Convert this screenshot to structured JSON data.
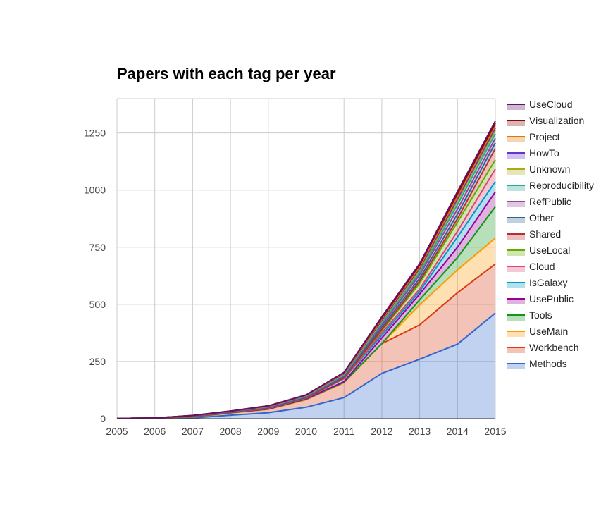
{
  "chart_data": {
    "type": "area",
    "stacked": true,
    "title": "Papers with each tag per year",
    "xlabel": "",
    "ylabel": "",
    "x": [
      2005,
      2006,
      2007,
      2008,
      2009,
      2010,
      2011,
      2012,
      2013,
      2014,
      2015
    ],
    "x_tick_labels": [
      "2005",
      "2006",
      "2007",
      "2008",
      "2009",
      "2010",
      "2011",
      "2012",
      "2013",
      "2014",
      "2015"
    ],
    "ylim": [
      0,
      1400
    ],
    "y_ticks": [
      0,
      250,
      500,
      750,
      1000,
      1250
    ],
    "y_tick_labels": [
      "0",
      "250",
      "500",
      "750",
      "1000",
      "1250"
    ],
    "grid": true,
    "legend_position": "right",
    "legend_order": [
      "UseCloud",
      "Visualization",
      "Project",
      "HowTo",
      "Unknown",
      "Reproducibility",
      "RefPublic",
      "Other",
      "Shared",
      "UseLocal",
      "Cloud",
      "IsGalaxy",
      "UsePublic",
      "Tools",
      "UseMain",
      "Workbench",
      "Methods"
    ],
    "series": [
      {
        "name": "Methods",
        "color": "#3366cc",
        "values": [
          0,
          1,
          3,
          15,
          26,
          50,
          92,
          198,
          260,
          326,
          462
        ]
      },
      {
        "name": "Workbench",
        "color": "#dc3912",
        "values": [
          1,
          2,
          4,
          10,
          15,
          33,
          66,
          130,
          150,
          225,
          215
        ]
      },
      {
        "name": "UseMain",
        "color": "#ff9900",
        "values": [
          0,
          0,
          0,
          0,
          0,
          0,
          0,
          0,
          88,
          100,
          113
        ]
      },
      {
        "name": "Tools",
        "color": "#109618",
        "values": [
          0,
          0,
          1,
          1,
          1,
          2,
          1,
          0,
          22,
          54,
          137
        ]
      },
      {
        "name": "UsePublic",
        "color": "#990099",
        "values": [
          0,
          0,
          1,
          1,
          1,
          2,
          3,
          25,
          25,
          45,
          65
        ]
      },
      {
        "name": "IsGalaxy",
        "color": "#0099c6",
        "values": [
          0,
          0,
          1,
          1,
          2,
          3,
          13,
          12,
          12,
          45,
          45
        ]
      },
      {
        "name": "Cloud",
        "color": "#dd4477",
        "values": [
          0,
          0,
          0,
          0,
          0,
          0,
          0,
          10,
          10,
          25,
          55
        ]
      },
      {
        "name": "UseLocal",
        "color": "#66aa00",
        "values": [
          0,
          0,
          1,
          1,
          2,
          2,
          3,
          10,
          25,
          40,
          40
        ]
      },
      {
        "name": "Shared",
        "color": "#b82e2e",
        "values": [
          0,
          0,
          0,
          0,
          0,
          0,
          0,
          5,
          10,
          15,
          50
        ]
      },
      {
        "name": "Other",
        "color": "#316395",
        "values": [
          0,
          0,
          1,
          1,
          2,
          2,
          5,
          10,
          12,
          20,
          25
        ]
      },
      {
        "name": "RefPublic",
        "color": "#994499",
        "values": [
          0,
          0,
          1,
          1,
          2,
          3,
          5,
          10,
          15,
          22,
          20
        ]
      },
      {
        "name": "Reproducibility",
        "color": "#22aa99",
        "values": [
          0,
          0,
          0,
          0,
          1,
          2,
          3,
          8,
          10,
          20,
          20
        ]
      },
      {
        "name": "Unknown",
        "color": "#aaaa11",
        "values": [
          0,
          0,
          0,
          1,
          1,
          2,
          3,
          8,
          10,
          15,
          15
        ]
      },
      {
        "name": "HowTo",
        "color": "#6633cc",
        "values": [
          0,
          0,
          0,
          0,
          1,
          1,
          2,
          5,
          8,
          10,
          10
        ]
      },
      {
        "name": "Project",
        "color": "#e67300",
        "values": [
          0,
          0,
          1,
          1,
          1,
          1,
          3,
          5,
          8,
          10,
          10
        ]
      },
      {
        "name": "Visualization",
        "color": "#8b0707",
        "values": [
          0,
          0,
          0,
          0,
          1,
          1,
          3,
          5,
          8,
          12,
          10
        ]
      },
      {
        "name": "UseCloud",
        "color": "#651067",
        "values": [
          0,
          0,
          0,
          0,
          0,
          0,
          0,
          5,
          5,
          10,
          10
        ]
      }
    ]
  }
}
